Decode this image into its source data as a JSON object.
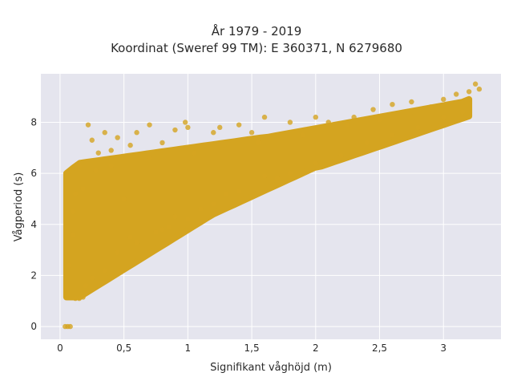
{
  "chart_data": {
    "type": "scatter",
    "title": "År 1979 - 2019",
    "subtitle": "Koordinat (Sweref 99 TM): E 360371, N 6279680",
    "xlabel": "Signifikant våghöjd (m)",
    "ylabel": "Vågperiod (s)",
    "xlim": [
      -0.15,
      3.45
    ],
    "ylim": [
      -0.5,
      9.9
    ],
    "xticks": [
      0,
      0.5,
      1,
      1.5,
      2,
      2.5,
      3
    ],
    "xtick_labels": [
      "0",
      "0,5",
      "1",
      "1,5",
      "2",
      "2,5",
      "3"
    ],
    "yticks": [
      0,
      2,
      4,
      6,
      8
    ],
    "ytick_labels": [
      "0",
      "2",
      "4",
      "6",
      "8"
    ],
    "grid": true,
    "legend": "none",
    "marker_color": "#D4A420",
    "background_color": "#E5E5EE",
    "series": [
      {
        "points": [
          [
            0.04,
            0.0
          ],
          [
            0.06,
            0.0
          ],
          [
            0.08,
            0.0
          ],
          [
            0.05,
            1.5
          ],
          [
            0.07,
            2.4
          ],
          [
            0.1,
            3.6
          ],
          [
            0.12,
            1.1
          ],
          [
            0.15,
            1.1
          ],
          [
            0.18,
            1.15
          ],
          [
            0.12,
            5.2
          ],
          [
            0.15,
            6.3
          ],
          [
            0.22,
            7.9
          ],
          [
            0.25,
            7.3
          ],
          [
            0.3,
            6.8
          ],
          [
            0.35,
            7.6
          ],
          [
            0.4,
            6.9
          ],
          [
            0.45,
            7.4
          ],
          [
            0.5,
            5.0
          ],
          [
            0.55,
            7.1
          ],
          [
            0.6,
            7.6
          ],
          [
            0.7,
            7.9
          ],
          [
            0.8,
            7.2
          ],
          [
            0.9,
            7.7
          ],
          [
            0.98,
            8.0
          ],
          [
            1.0,
            7.8
          ],
          [
            1.2,
            7.6
          ],
          [
            1.25,
            7.8
          ],
          [
            1.4,
            7.9
          ],
          [
            1.5,
            7.6
          ],
          [
            1.6,
            8.2
          ],
          [
            1.8,
            8.0
          ],
          [
            2.0,
            8.2
          ],
          [
            2.1,
            8.0
          ],
          [
            2.3,
            8.2
          ],
          [
            2.45,
            8.5
          ],
          [
            2.6,
            8.7
          ],
          [
            2.75,
            8.8
          ],
          [
            2.9,
            8.6
          ],
          [
            3.0,
            8.9
          ],
          [
            3.1,
            9.1
          ],
          [
            3.2,
            9.2
          ],
          [
            3.25,
            9.5
          ],
          [
            3.28,
            9.3
          ],
          [
            0.45,
            2.9
          ],
          [
            0.6,
            3.3
          ],
          [
            0.8,
            3.8
          ],
          [
            1.0,
            4.2
          ],
          [
            1.2,
            4.8
          ],
          [
            1.4,
            5.3
          ],
          [
            1.6,
            5.9
          ],
          [
            1.8,
            6.0
          ],
          [
            2.0,
            6.4
          ],
          [
            2.2,
            6.7
          ],
          [
            0.35,
            2.2
          ],
          [
            0.25,
            1.9
          ],
          [
            0.2,
            1.6
          ],
          [
            0.55,
            3.5
          ],
          [
            0.9,
            4.3
          ],
          [
            1.1,
            4.6
          ],
          [
            0.75,
            3.7
          ],
          [
            0.85,
            3.9
          ],
          [
            1.3,
            5.2
          ],
          [
            1.7,
            5.8
          ],
          [
            2.4,
            7.2
          ],
          [
            2.6,
            7.5
          ],
          [
            2.8,
            7.8
          ],
          [
            3.0,
            8.2
          ],
          [
            3.15,
            8.4
          ],
          [
            0.1,
            4.5
          ],
          [
            0.18,
            5.4
          ],
          [
            0.28,
            6.1
          ],
          [
            0.4,
            6.3
          ],
          [
            0.7,
            6.6
          ],
          [
            1.05,
            6.8
          ],
          [
            1.55,
            7.2
          ],
          [
            1.9,
            7.5
          ],
          [
            2.25,
            7.9
          ],
          [
            2.5,
            8.1
          ]
        ]
      }
    ]
  }
}
